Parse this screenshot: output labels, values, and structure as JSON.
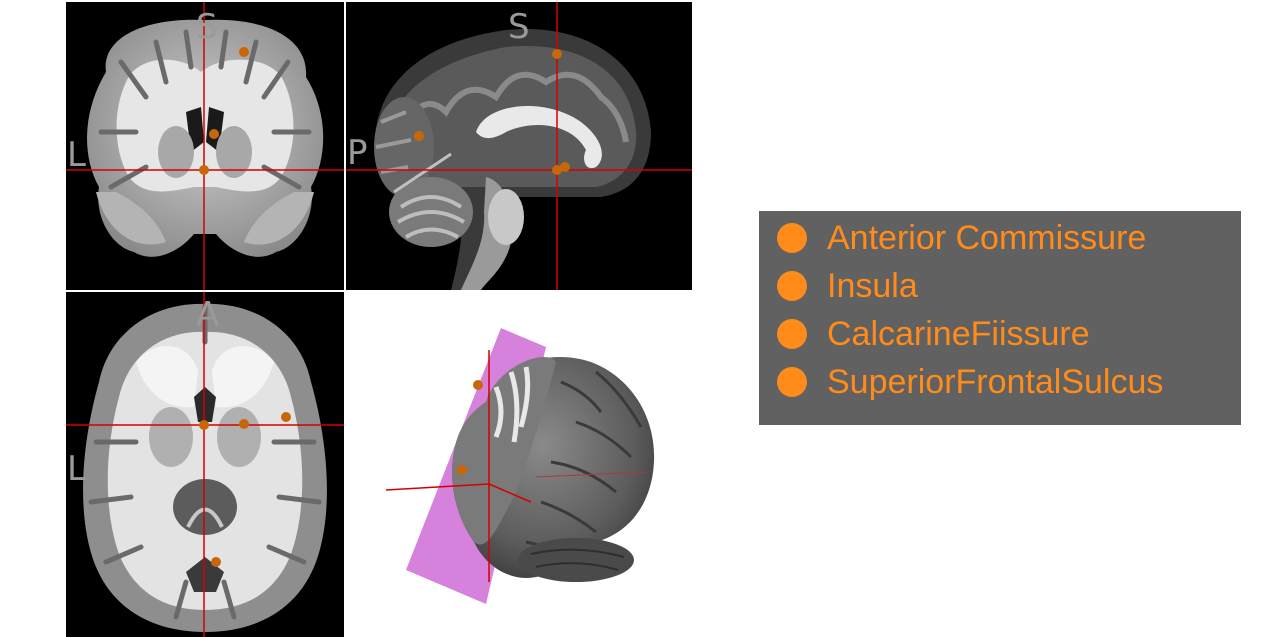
{
  "colors": {
    "crosshair": "#d40000",
    "marker": "#c8670a",
    "legend_text": "#ff8c1a",
    "legend_background": "#616161",
    "slice_plane": "#d681dc",
    "orientation_label": "#9a9a9a"
  },
  "views": {
    "coronal": {
      "label_top": "S",
      "label_left": "L"
    },
    "sagittal": {
      "label_top": "S",
      "label_left": "P"
    },
    "axial": {
      "label_top": "A",
      "label_left": "L"
    },
    "render3d": {
      "slice_plane": "sagittal"
    }
  },
  "legend": {
    "items": [
      {
        "label": "Anterior Commissure",
        "color": "#ff8c1a"
      },
      {
        "label": "Insula",
        "color": "#ff8c1a"
      },
      {
        "label": "CalcarineFiissure",
        "color": "#ff8c1a"
      },
      {
        "label": "SuperiorFrontalSulcus",
        "color": "#ff8c1a"
      }
    ]
  }
}
